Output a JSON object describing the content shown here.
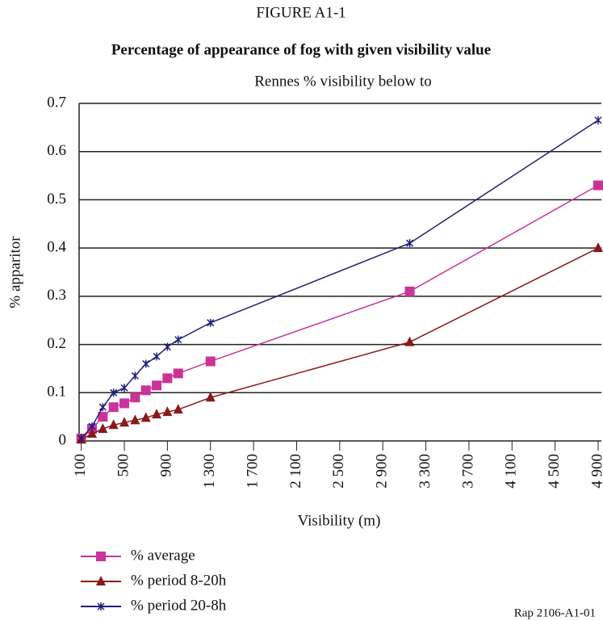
{
  "figure_label": "FIGURE A1-1",
  "note": "Rap 2106-A1-01",
  "chart_data": {
    "type": "line",
    "title": "Percentage of appearance of fog with given visibility value",
    "subtitle": "Rennes % visibility below to",
    "x_label": "Visibility (m)",
    "y_label": "% apparitor",
    "x": [
      100,
      200,
      300,
      400,
      500,
      600,
      700,
      800,
      900,
      1000,
      1300,
      3150,
      4900
    ],
    "series": [
      {
        "name": "% average",
        "color": "#cc3399",
        "marker": "square",
        "values": [
          0.005,
          0.025,
          0.05,
          0.07,
          0.078,
          0.09,
          0.105,
          0.115,
          0.13,
          0.14,
          0.165,
          0.31,
          0.53
        ]
      },
      {
        "name": "% period 8-20h",
        "color": "#8b1a1a",
        "marker": "triangle",
        "values": [
          0.003,
          0.015,
          0.025,
          0.033,
          0.038,
          0.043,
          0.048,
          0.055,
          0.06,
          0.065,
          0.09,
          0.205,
          0.4
        ]
      },
      {
        "name": "% period 20-8h",
        "color": "#1f1f7a",
        "marker": "cross",
        "values": [
          0.005,
          0.03,
          0.07,
          0.1,
          0.11,
          0.135,
          0.16,
          0.175,
          0.195,
          0.21,
          0.245,
          0.41,
          0.665
        ]
      }
    ],
    "xlim": [
      80,
      4930
    ],
    "ylim": [
      0,
      0.7
    ],
    "yticks": [
      0,
      0.1,
      0.2,
      0.3,
      0.4,
      0.5,
      0.6,
      0.7
    ],
    "xticks": [
      100,
      500,
      900,
      {
        "value": 1300,
        "label": "1 300"
      },
      {
        "value": 1700,
        "label": "1 700"
      },
      {
        "value": 2100,
        "label": "2 100"
      },
      {
        "value": 2500,
        "label": "2 500"
      },
      {
        "value": 2900,
        "label": "2 900"
      },
      {
        "value": 3300,
        "label": "3 300"
      },
      {
        "value": 3700,
        "label": "3 700"
      },
      {
        "value": 4100,
        "label": "4 100"
      },
      {
        "value": 4500,
        "label": "4 500"
      },
      {
        "value": 4900,
        "label": "4 900"
      }
    ],
    "grid": true
  }
}
